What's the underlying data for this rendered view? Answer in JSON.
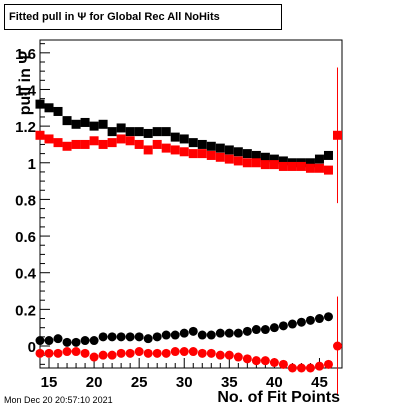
{
  "header": {
    "title": "Fitted pull in  Ψ  for Global Rec All NoHits"
  },
  "footer": {
    "timestamp": "Mon Dec 20 20:57:10 2021"
  },
  "chart_data": {
    "type": "scatter",
    "title": "Fitted pull in  Ψ  for Global Rec All NoHits",
    "xlabel": "No. of Fit Points",
    "ylabel": "pull in  Ψ",
    "xlim": [
      14,
      47.5
    ],
    "ylim": [
      -0.12,
      1.67
    ],
    "xticks": [
      15,
      20,
      25,
      30,
      35,
      40,
      45
    ],
    "yticks": [
      0,
      0.2,
      0.4,
      0.6,
      0.8,
      1,
      1.2,
      1.4,
      1.6
    ],
    "ytick_labels": [
      "0",
      "0.2",
      "0.4",
      "0.6",
      "0.8",
      "1",
      "1.2",
      "1.4",
      "1.6"
    ],
    "series": [
      {
        "marker": "square",
        "color": "#000000",
        "x": [
          14,
          15,
          16,
          17,
          18,
          19,
          20,
          21,
          22,
          23,
          24,
          25,
          26,
          27,
          28,
          29,
          30,
          31,
          32,
          33,
          34,
          35,
          36,
          37,
          38,
          39,
          40,
          41,
          42,
          43,
          44,
          45,
          46
        ],
        "y": [
          1.32,
          1.3,
          1.28,
          1.23,
          1.21,
          1.22,
          1.2,
          1.21,
          1.17,
          1.19,
          1.17,
          1.17,
          1.16,
          1.17,
          1.17,
          1.14,
          1.13,
          1.11,
          1.1,
          1.09,
          1.08,
          1.07,
          1.06,
          1.05,
          1.04,
          1.03,
          1.02,
          1.01,
          1.0,
          1.0,
          1.0,
          1.02,
          1.04
        ]
      },
      {
        "marker": "square",
        "color": "#ff0000",
        "x": [
          14,
          15,
          16,
          17,
          18,
          19,
          20,
          21,
          22,
          23,
          24,
          25,
          26,
          27,
          28,
          29,
          30,
          31,
          32,
          33,
          34,
          35,
          36,
          37,
          38,
          39,
          40,
          41,
          42,
          43,
          44,
          45,
          46,
          47
        ],
        "y": [
          1.15,
          1.13,
          1.11,
          1.09,
          1.1,
          1.1,
          1.12,
          1.1,
          1.11,
          1.13,
          1.12,
          1.1,
          1.07,
          1.1,
          1.08,
          1.07,
          1.06,
          1.05,
          1.05,
          1.04,
          1.03,
          1.02,
          1.01,
          1.0,
          1.0,
          0.99,
          0.99,
          0.98,
          0.98,
          0.98,
          0.97,
          0.97,
          0.96,
          1.15
        ],
        "err_point": {
          "x": 47,
          "y": 1.15,
          "err": 0.37
        }
      },
      {
        "marker": "circle",
        "color": "#000000",
        "x": [
          14,
          15,
          16,
          17,
          18,
          19,
          20,
          21,
          22,
          23,
          24,
          25,
          26,
          27,
          28,
          29,
          30,
          31,
          32,
          33,
          34,
          35,
          36,
          37,
          38,
          39,
          40,
          41,
          42,
          43,
          44,
          45,
          46
        ],
        "y": [
          0.03,
          0.03,
          0.04,
          0.02,
          0.02,
          0.03,
          0.03,
          0.05,
          0.05,
          0.05,
          0.05,
          0.05,
          0.04,
          0.05,
          0.06,
          0.06,
          0.07,
          0.08,
          0.06,
          0.06,
          0.07,
          0.07,
          0.07,
          0.08,
          0.09,
          0.09,
          0.1,
          0.11,
          0.12,
          0.13,
          0.14,
          0.15,
          0.16
        ]
      },
      {
        "marker": "circle",
        "color": "#ff0000",
        "x": [
          14,
          15,
          16,
          17,
          18,
          19,
          20,
          21,
          22,
          23,
          24,
          25,
          26,
          27,
          28,
          29,
          30,
          31,
          32,
          33,
          34,
          35,
          36,
          37,
          38,
          39,
          40,
          41,
          42,
          43,
          44,
          45,
          46,
          47
        ],
        "y": [
          -0.04,
          -0.04,
          -0.04,
          -0.03,
          -0.03,
          -0.04,
          -0.06,
          -0.05,
          -0.05,
          -0.04,
          -0.04,
          -0.03,
          -0.04,
          -0.04,
          -0.04,
          -0.03,
          -0.03,
          -0.03,
          -0.04,
          -0.04,
          -0.05,
          -0.05,
          -0.06,
          -0.07,
          -0.08,
          -0.08,
          -0.09,
          -0.1,
          -0.12,
          -0.12,
          -0.12,
          -0.11,
          -0.1,
          0.0
        ],
        "err_point": {
          "x": 47,
          "y": 0.0,
          "err": 0.27
        }
      }
    ]
  }
}
